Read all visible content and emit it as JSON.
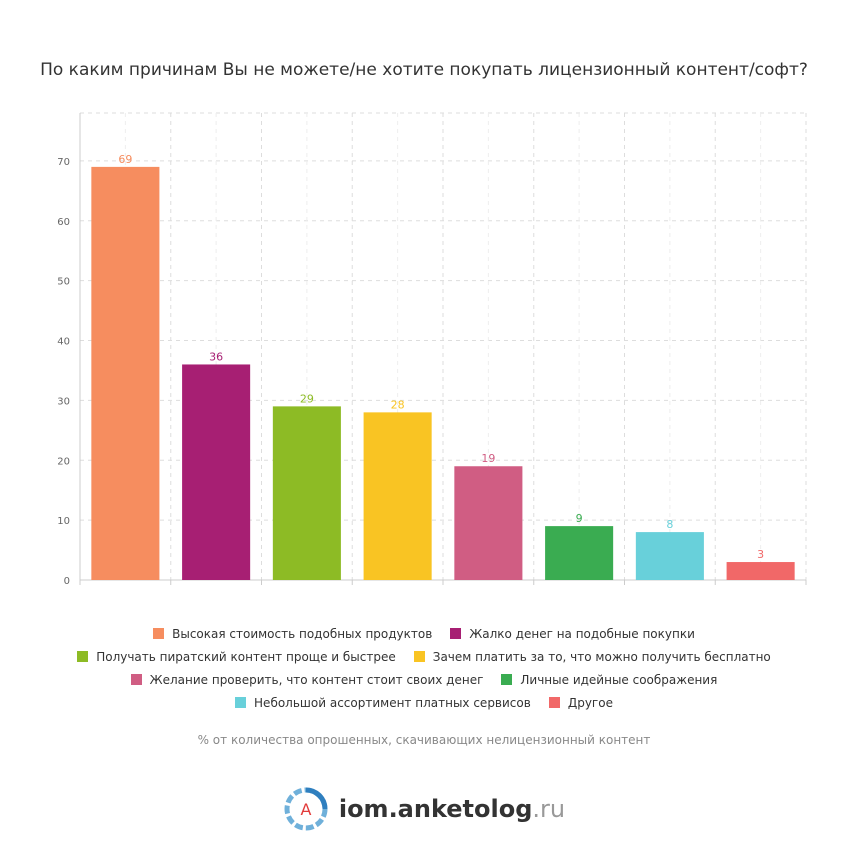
{
  "chart_data": {
    "type": "bar",
    "title": "По каким причинам Вы не можете/не хотите покупать лицензионный контент/софт?",
    "xlabel": "",
    "ylabel": "",
    "ylim": [
      0,
      78
    ],
    "yticks": [
      0,
      10,
      20,
      30,
      40,
      50,
      60,
      70
    ],
    "grid": true,
    "legend_position": "bottom",
    "categories": [
      "Высокая стоимость подобных продуктов",
      "Жалко денег на подобные покупки",
      "Получать пиратский контент проще и быстрее",
      "Зачем платить за то, что можно получить бесплатно",
      "Желание проверить, что контент стоит своих денег",
      "Личные идейные соображения",
      "Небольшой ассортимент платных сервисов",
      "Другое"
    ],
    "values": [
      69,
      36,
      29,
      28,
      19,
      9,
      8,
      3
    ],
    "colors": [
      "#f68d5f",
      "#a71f73",
      "#8dbb25",
      "#f9c423",
      "#d05d83",
      "#3aac51",
      "#68d0da",
      "#f16868"
    ],
    "legend_rows": [
      [
        0,
        1
      ],
      [
        2,
        3
      ],
      [
        4,
        5
      ],
      [
        6,
        7
      ]
    ],
    "footnote": "% от количества опрошенных, скачивающих нелицензионный контент"
  },
  "brand": {
    "logo_letter": "A",
    "name": "iom.anketolog",
    "tld": ".ru"
  }
}
